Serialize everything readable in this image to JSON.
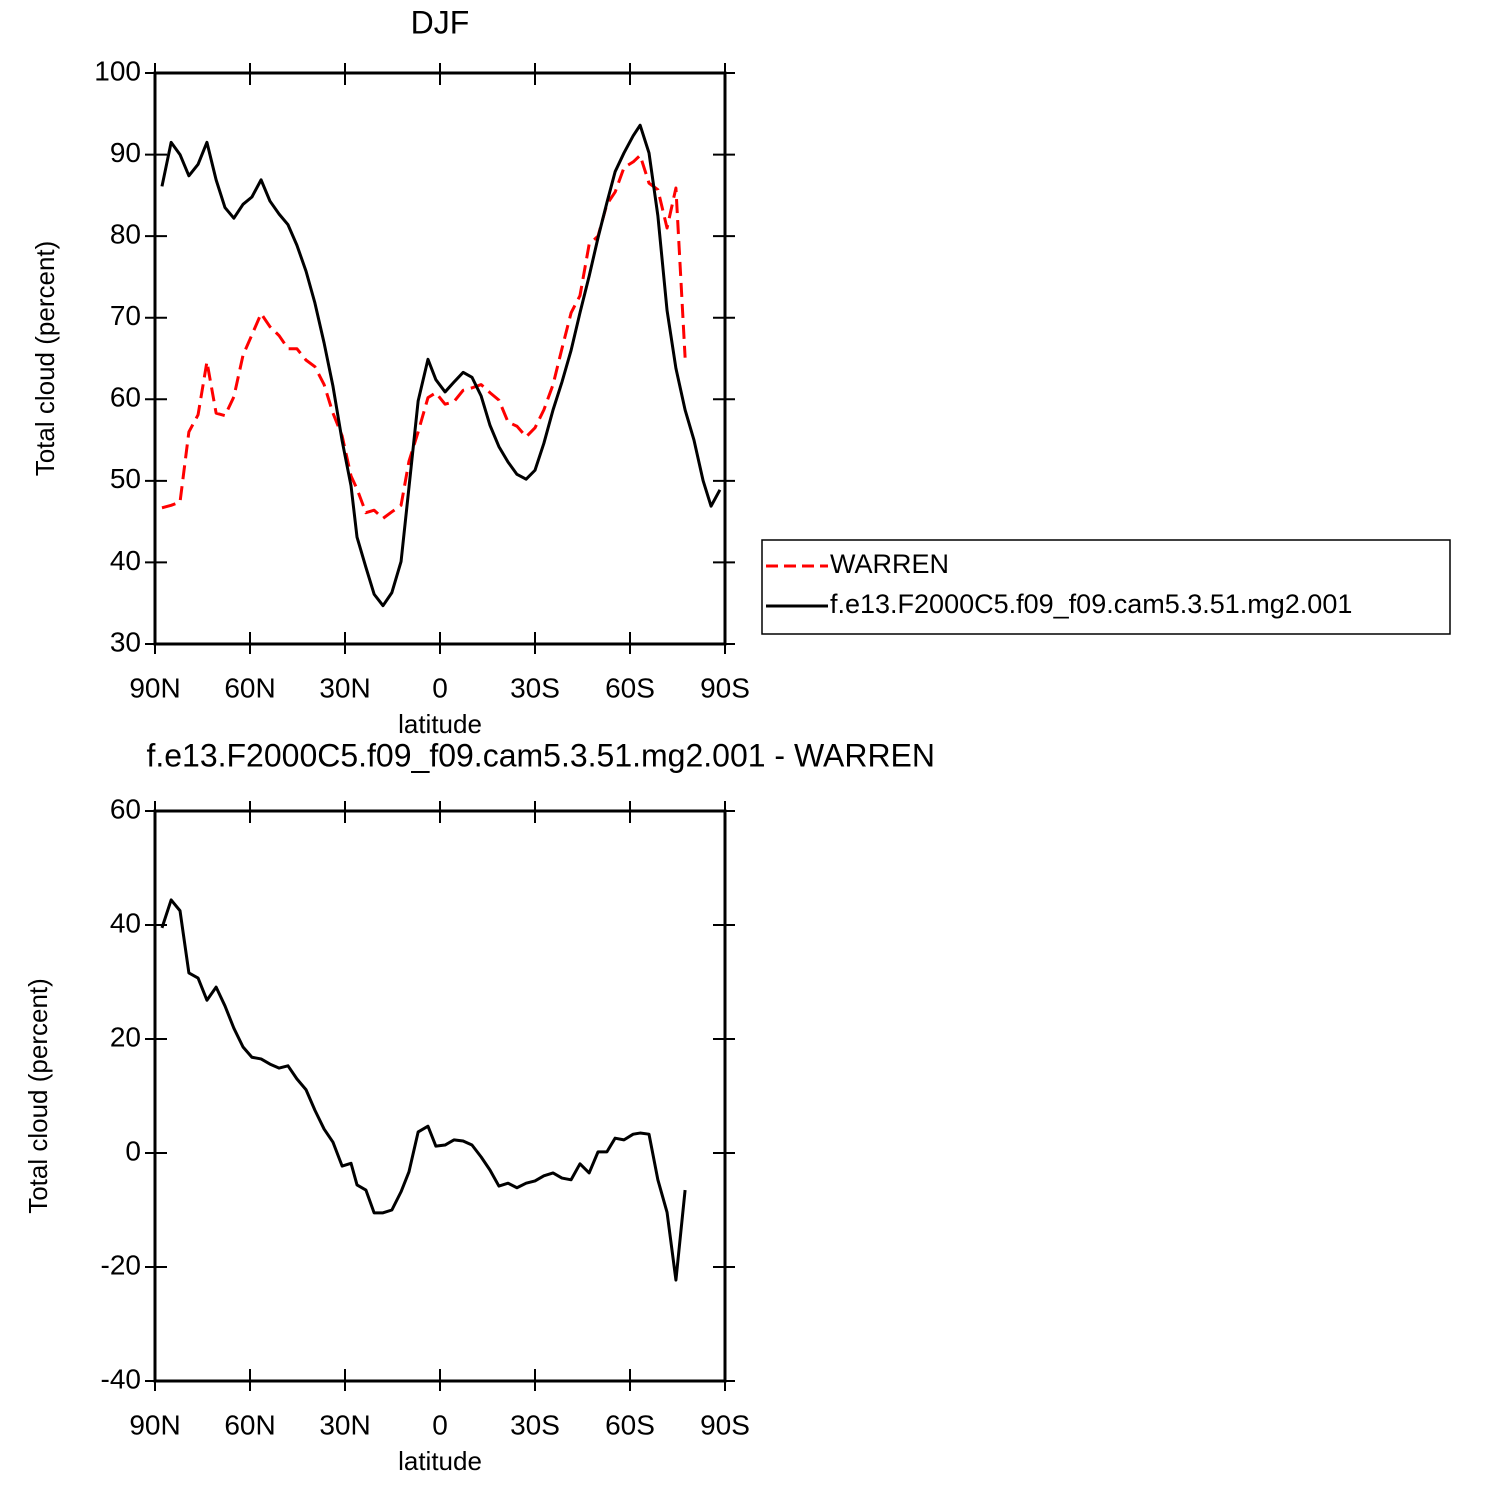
{
  "chart_data": [
    {
      "type": "line",
      "title": "DJF",
      "xlabel": "latitude",
      "ylabel": "Total cloud (percent)",
      "x": [
        87.8,
        84.9,
        82.1,
        79.3,
        76.4,
        73.6,
        70.7,
        67.9,
        65.1,
        62.2,
        59.4,
        56.5,
        53.7,
        50.8,
        48,
        45.2,
        42.3,
        39.5,
        36.6,
        33.8,
        30.9,
        28.1,
        26.2,
        23.4,
        20.8,
        18,
        15.2,
        12.3,
        9.8,
        6.9,
        3.8,
        1.3,
        -1.6,
        -4.4,
        -7.3,
        -10.1,
        -13,
        -15.8,
        -18.6,
        -21.5,
        -24.3,
        -27.2,
        -30,
        -32.8,
        -35.7,
        -38.5,
        -41.4,
        -44.2,
        -47.1,
        -49.9,
        -52.7,
        -55.3,
        -58.1,
        -61,
        -63.2,
        -66,
        -68.8,
        -71.7,
        -74.5,
        -77.4,
        -80.2,
        -83.1,
        -85.6,
        -88.4
      ],
      "series": [
        {
          "name": "WARREN",
          "color": "#ff0000",
          "linestyle": "dashed",
          "values": [
            46.7,
            47.0,
            47.4,
            56.0,
            58.1,
            64.6,
            58.3,
            58.0,
            60.3,
            65.4,
            67.9,
            70.5,
            68.9,
            67.8,
            66.2,
            66.2,
            64.8,
            64.0,
            61.8,
            58.3,
            55.5,
            50.6,
            49.0,
            46.1,
            46.4,
            45.4,
            46.2,
            47.0,
            52.4,
            56.0,
            60.2,
            60.8,
            59.4,
            59.7,
            61.1,
            61.4,
            61.8,
            60.8,
            59.9,
            57.2,
            56.7,
            55.4,
            56.5,
            58.7,
            61.8,
            66.2,
            70.6,
            72.7,
            79.0,
            80.0,
            83.9,
            85.4,
            88.4,
            89.1,
            89.9,
            86.5,
            85.7,
            81.0,
            85.9,
            65.1,
            null,
            null,
            null,
            null
          ]
        },
        {
          "name": "f.e13.F2000C5.f09_f09.cam5.3.51.mg2.001",
          "color": "#000000",
          "linestyle": "solid",
          "values": [
            86.1,
            91.5,
            90,
            87.4,
            88.8,
            91.5,
            86.9,
            83.5,
            82.2,
            83.9,
            84.8,
            86.9,
            84.3,
            82.7,
            81.4,
            78.9,
            75.7,
            71.8,
            66.9,
            61.6,
            54.9,
            49.4,
            43.1,
            39.4,
            36.1,
            34.7,
            36.3,
            40.1,
            49.2,
            59.8,
            64.9,
            62.4,
            60.9,
            62.1,
            63.3,
            62.7,
            60.4,
            56.8,
            54.2,
            52.3,
            50.8,
            50.2,
            51.3,
            54.6,
            58.7,
            62.1,
            66.0,
            70.6,
            75.1,
            79.8,
            84.1,
            87.9,
            90.2,
            92.3,
            93.6,
            90.2,
            82.5,
            70.9,
            63.8,
            58.7,
            55.0,
            50.0,
            46.9,
            48.9
          ]
        }
      ],
      "xlim": [
        90,
        -90
      ],
      "xticks": [
        {
          "value": 90,
          "label": "90N"
        },
        {
          "value": 60,
          "label": "60N"
        },
        {
          "value": 30,
          "label": "30N"
        },
        0,
        {
          "value": -30,
          "label": "30S"
        },
        {
          "value": -60,
          "label": "60S"
        },
        {
          "value": -90,
          "label": "90S"
        }
      ],
      "ylim": [
        30,
        100
      ],
      "yticks": [
        30,
        40,
        50,
        60,
        70,
        80,
        90,
        100
      ],
      "legend": "right"
    },
    {
      "type": "line",
      "title": "f.e13.F2000C5.f09_f09.cam5.3.51.mg2.001 - WARREN",
      "xlabel": "latitude",
      "ylabel": "Total cloud (percent)",
      "x": [
        87.8,
        84.9,
        82.1,
        79.3,
        76.4,
        73.6,
        70.7,
        67.9,
        65.1,
        62.2,
        59.4,
        56.5,
        53.7,
        50.8,
        48,
        45.2,
        42.3,
        39.5,
        36.6,
        33.8,
        30.9,
        28.1,
        26.2,
        23.4,
        20.8,
        18,
        15.2,
        12.3,
        9.8,
        6.9,
        3.8,
        1.3,
        -1.6,
        -4.4,
        -7.3,
        -10.1,
        -13,
        -15.8,
        -18.6,
        -21.5,
        -24.3,
        -27.2,
        -30,
        -32.8,
        -35.7,
        -38.5,
        -41.4,
        -44.2,
        -47.1,
        -49.9,
        -52.7,
        -55.3,
        -58.1,
        -61,
        -63.2,
        -66,
        -68.8,
        -71.7,
        -74.5,
        -77.4,
        -80.2,
        -83.1,
        -85.6,
        -88.4
      ],
      "values": [
        39.5,
        44.4,
        42.5,
        31.6,
        30.7,
        26.8,
        29.1,
        25.8,
        21.9,
        18.6,
        16.8,
        16.5,
        15.6,
        14.9,
        15.3,
        13.0,
        11.1,
        7.5,
        4.2,
        1.9,
        -2.3,
        -1.8,
        -5.6,
        -6.5,
        -10.5,
        -10.5,
        -10.0,
        -6.8,
        -3.3,
        3.7,
        4.7,
        1.2,
        1.4,
        2.3,
        2.1,
        1.4,
        -0.7,
        -3.0,
        -5.8,
        -5.3,
        -6.1,
        -5.3,
        -4.9,
        -4.0,
        -3.5,
        -4.4,
        -4.7,
        -1.9,
        -3.5,
        0.2,
        0.2,
        2.6,
        2.3,
        3.3,
        3.5,
        3.3,
        -4.7,
        -10.4,
        -22.3,
        -6.5,
        null,
        null,
        null,
        null
      ],
      "color": "#000000",
      "xlim": [
        90,
        -90
      ],
      "xticks": [
        {
          "value": 90,
          "label": "90N"
        },
        {
          "value": 60,
          "label": "60N"
        },
        {
          "value": 30,
          "label": "30N"
        },
        0,
        {
          "value": -30,
          "label": "30S"
        },
        {
          "value": -60,
          "label": "60S"
        },
        {
          "value": -90,
          "label": "90S"
        }
      ],
      "ylim": [
        -40,
        60
      ],
      "yticks": [
        -40,
        -20,
        0,
        20,
        40,
        60
      ]
    }
  ]
}
